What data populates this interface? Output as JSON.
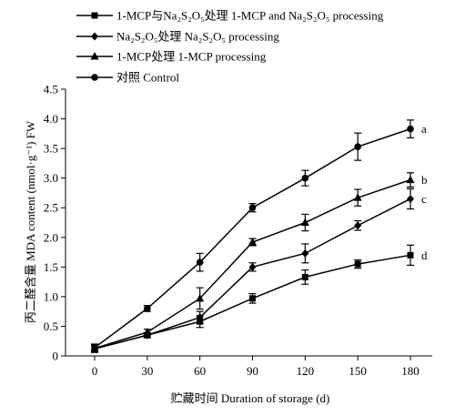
{
  "chart_data": {
    "type": "line",
    "xlabel": "贮藏时间 Duration of storage (d)",
    "ylabel": "丙二醛含量 MDA content (nmol·g⁻¹) FW",
    "x": [
      0,
      30,
      60,
      90,
      120,
      150,
      180
    ],
    "xlim": [
      0,
      180
    ],
    "ylim": [
      0,
      4.5
    ],
    "xticks": [
      "0",
      "30",
      "60",
      "90",
      "120",
      "150",
      "180"
    ],
    "yticks": [
      "0",
      "0.5",
      "1.0",
      "1.5",
      "2.0",
      "2.5",
      "3.0",
      "3.5",
      "4.0",
      "4.5"
    ],
    "grid": false,
    "legend_position": "top-left",
    "series": [
      {
        "name": "1-MCP与Na₂S₂O₅处理 1-MCP and Na₂S₂O₅ processing",
        "marker": "square",
        "values": [
          0.12,
          0.35,
          0.58,
          0.97,
          1.33,
          1.55,
          1.7
        ],
        "errors": [
          0.06,
          0.04,
          0.1,
          0.08,
          0.12,
          0.07,
          0.17
        ],
        "significance": "d"
      },
      {
        "name": "Na₂S₂O₅处理 Na₂S₂O₅ processing",
        "marker": "diamond",
        "values": [
          0.12,
          0.35,
          0.65,
          1.5,
          1.73,
          2.2,
          2.65
        ],
        "errors": [
          0.06,
          0.04,
          0.1,
          0.07,
          0.16,
          0.08,
          0.17
        ],
        "significance": "c"
      },
      {
        "name": "1-MCP处理 1-MCP processing",
        "marker": "triangle",
        "values": [
          0.13,
          0.4,
          0.97,
          1.92,
          2.25,
          2.67,
          2.97
        ],
        "errors": [
          0.06,
          0.05,
          0.18,
          0.06,
          0.14,
          0.14,
          0.12
        ],
        "significance": "b"
      },
      {
        "name": "对照 Control",
        "marker": "circle",
        "values": [
          0.14,
          0.8,
          1.58,
          2.5,
          3.0,
          3.53,
          3.83
        ],
        "errors": [
          0.06,
          0.05,
          0.15,
          0.07,
          0.13,
          0.23,
          0.15
        ],
        "significance": "a"
      }
    ]
  }
}
